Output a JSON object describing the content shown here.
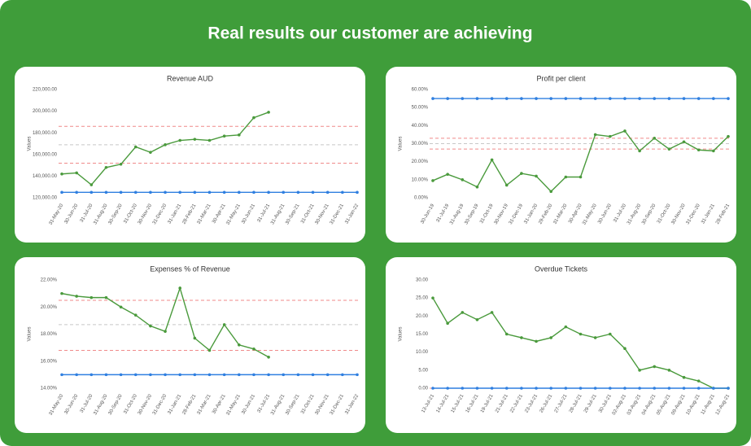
{
  "title": "Real results our customer are achieving",
  "chart_data": [
    {
      "type": "line",
      "title": "Revenue AUD",
      "ylabel": "Values",
      "categories": [
        "31-May-20",
        "30-Jun-20",
        "31-Jul-20",
        "31-Aug-20",
        "30-Sep-20",
        "31-Oct-20",
        "30-Nov-20",
        "31-Dec-20",
        "31-Jan-21",
        "28-Feb-21",
        "31-Mar-21",
        "30-Apr-21",
        "31-May-21",
        "30-Jun-21",
        "31-Jul-21",
        "31-Aug-21",
        "30-Sep-21",
        "31-Oct-21",
        "30-Nov-21",
        "31-Dec-21",
        "31-Jan-22"
      ],
      "series": [
        {
          "color": "#4a9a3c",
          "values": [
            142000,
            143000,
            132000,
            148000,
            151000,
            167000,
            162000,
            169000,
            173000,
            174000,
            173000,
            177000,
            178000,
            194000,
            199000,
            null,
            null,
            null,
            null,
            null,
            null
          ]
        },
        {
          "color": "#2f7fe0",
          "values": [
            125000,
            125000,
            125000,
            125000,
            125000,
            125000,
            125000,
            125000,
            125000,
            125000,
            125000,
            125000,
            125000,
            125000,
            125000,
            125000,
            125000,
            125000,
            125000,
            125000,
            125000
          ]
        }
      ],
      "reference_lines": [
        {
          "value": 186000,
          "color": "#f08a8a"
        },
        {
          "value": 169000,
          "color": "#c8c8c8"
        },
        {
          "value": 152000,
          "color": "#f08a8a"
        }
      ],
      "ylim": [
        120000,
        220000
      ],
      "yticks": [
        {
          "value": 120000,
          "label": "120,000.00"
        },
        {
          "value": 140000,
          "label": "140,000.00"
        },
        {
          "value": 160000,
          "label": "160,000.00"
        },
        {
          "value": 180000,
          "label": "180,000.00"
        },
        {
          "value": 200000,
          "label": "200,000.00"
        },
        {
          "value": 220000,
          "label": "220,000.00"
        }
      ],
      "grid": false
    },
    {
      "type": "line",
      "title": "Profit per client",
      "ylabel": "Values",
      "categories": [
        "30-Jun-19",
        "31-Jul-19",
        "31-Aug-19",
        "30-Sep-19",
        "31-Oct-19",
        "30-Nov-19",
        "31-Dec-19",
        "31-Jan-20",
        "29-Feb-20",
        "31-Mar-20",
        "30-Apr-20",
        "31-May-20",
        "30-Jun-20",
        "31-Jul-20",
        "31-Aug-20",
        "30-Sep-20",
        "31-Oct-20",
        "30-Nov-20",
        "31-Dec-20",
        "31-Jan-21",
        "28-Feb-21"
      ],
      "series": [
        {
          "color": "#4a9a3c",
          "values": [
            9.5,
            13,
            10,
            6,
            21,
            7,
            13.5,
            12,
            3.5,
            11.5,
            11.5,
            35,
            34,
            37,
            26,
            33,
            27,
            31,
            26.5,
            26,
            34
          ]
        },
        {
          "color": "#2f7fe0",
          "values": [
            55,
            55,
            55,
            55,
            55,
            55,
            55,
            55,
            55,
            55,
            55,
            55,
            55,
            55,
            55,
            55,
            55,
            55,
            55,
            55,
            55
          ]
        }
      ],
      "reference_lines": [
        {
          "value": 33,
          "color": "#f08a8a"
        },
        {
          "value": 30,
          "color": "#c8c8c8"
        },
        {
          "value": 27,
          "color": "#f08a8a"
        }
      ],
      "ylim": [
        0,
        60
      ],
      "yticks": [
        {
          "value": 0,
          "label": "0.00%"
        },
        {
          "value": 10,
          "label": "10.00%"
        },
        {
          "value": 20,
          "label": "20.00%"
        },
        {
          "value": 30,
          "label": "30.00%"
        },
        {
          "value": 40,
          "label": "40.00%"
        },
        {
          "value": 50,
          "label": "50.00%"
        },
        {
          "value": 60,
          "label": "60.00%"
        }
      ],
      "grid": false
    },
    {
      "type": "line",
      "title": "Expenses % of Revenue",
      "ylabel": "Values",
      "categories": [
        "31-May-20",
        "30-Jun-20",
        "31-Jul-20",
        "31-Aug-20",
        "30-Sep-20",
        "31-Oct-20",
        "30-Nov-20",
        "31-Dec-20",
        "31-Jan-21",
        "28-Feb-21",
        "31-Mar-21",
        "30-Apr-21",
        "31-May-21",
        "30-Jun-21",
        "31-Jul-21",
        "31-Aug-21",
        "30-Sep-21",
        "31-Oct-21",
        "30-Nov-21",
        "31-Dec-21",
        "31-Jan-22"
      ],
      "series": [
        {
          "color": "#4a9a3c",
          "values": [
            21.0,
            20.8,
            20.7,
            20.7,
            20.0,
            19.4,
            18.6,
            18.2,
            21.4,
            17.7,
            16.8,
            18.7,
            17.2,
            16.9,
            16.3,
            null,
            null,
            null,
            null,
            null,
            null
          ]
        },
        {
          "color": "#2f7fe0",
          "values": [
            15,
            15,
            15,
            15,
            15,
            15,
            15,
            15,
            15,
            15,
            15,
            15,
            15,
            15,
            15,
            15,
            15,
            15,
            15,
            15,
            15
          ]
        }
      ],
      "reference_lines": [
        {
          "value": 20.5,
          "color": "#f08a8a"
        },
        {
          "value": 18.7,
          "color": "#c8c8c8"
        },
        {
          "value": 16.8,
          "color": "#f08a8a"
        }
      ],
      "ylim": [
        14,
        22
      ],
      "yticks": [
        {
          "value": 14,
          "label": "14.00%"
        },
        {
          "value": 16,
          "label": "16.00%"
        },
        {
          "value": 18,
          "label": "18.00%"
        },
        {
          "value": 20,
          "label": "20.00%"
        },
        {
          "value": 22,
          "label": "22.00%"
        }
      ],
      "grid": false
    },
    {
      "type": "line",
      "title": "Overdue Tickets",
      "ylabel": "Values",
      "categories": [
        "13-Jul-21",
        "14-Jul-21",
        "15-Jul-21",
        "16-Jul-21",
        "19-Jul-21",
        "21-Jul-21",
        "22-Jul-21",
        "23-Jul-21",
        "26-Jul-21",
        "27-Jul-21",
        "28-Jul-21",
        "29-Jul-21",
        "30-Jul-21",
        "02-Aug-21",
        "03-Aug-21",
        "04-Aug-21",
        "05-Aug-21",
        "09-Aug-21",
        "10-Aug-21",
        "11-Aug-21",
        "12-Aug-21"
      ],
      "series": [
        {
          "color": "#4a9a3c",
          "values": [
            25,
            18,
            21,
            19,
            21,
            15,
            14,
            13,
            14,
            17,
            15,
            14,
            15,
            11,
            5,
            6,
            5,
            3,
            2,
            0,
            0
          ]
        },
        {
          "color": "#2f7fe0",
          "values": [
            0,
            0,
            0,
            0,
            0,
            0,
            0,
            0,
            0,
            0,
            0,
            0,
            0,
            0,
            0,
            0,
            0,
            0,
            0,
            0,
            0
          ]
        }
      ],
      "reference_lines": [
        {
          "value": 0,
          "color": "#f08a8a"
        }
      ],
      "ylim": [
        0,
        30
      ],
      "yticks": [
        {
          "value": 0,
          "label": "0.00"
        },
        {
          "value": 5,
          "label": "5.00"
        },
        {
          "value": 10,
          "label": "10.00"
        },
        {
          "value": 15,
          "label": "15.00"
        },
        {
          "value": 20,
          "label": "20.00"
        },
        {
          "value": 25,
          "label": "25.00"
        },
        {
          "value": 30,
          "label": "30.00"
        }
      ],
      "grid": false
    }
  ]
}
